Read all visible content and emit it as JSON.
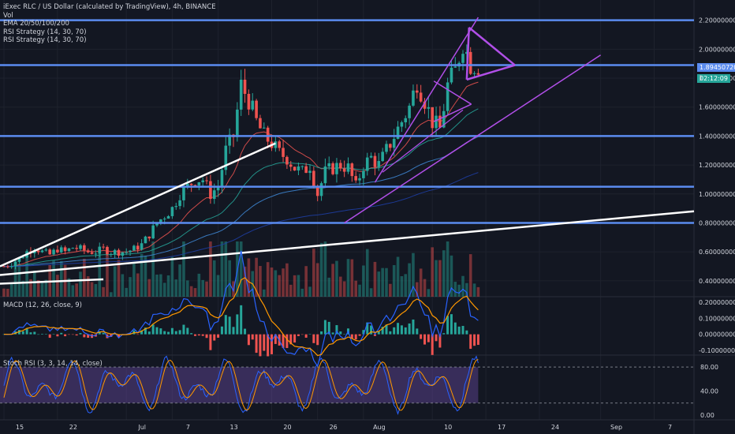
{
  "legend": {
    "title": "iExec RLC / US Dollar (calculated by TradingView), 4h, BINANCE",
    "vol": "Vol",
    "ema": "EMA 20/50/100/200",
    "rsi1": "RSI Strategy (14, 30, 70)",
    "rsi2": "RSI Strategy (14, 30, 70)"
  },
  "price_badge": {
    "price": "1.89450720",
    "countdown": "02:12:09",
    "cut_label": "1"
  },
  "macd_title": "MACD (12, 26, close, 9)",
  "stoch_title": "Stoch RSI (3, 3, 14, 14, close)",
  "colors": {
    "background": "#131722",
    "hline": "#5b8cf0",
    "trend_white": "#ffffff",
    "pattern": "#b14fe8",
    "up": "#26a69a",
    "down": "#ef5350",
    "stoch_band": "#7e57c2"
  },
  "chart_data": [
    {
      "type": "candlestick",
      "title": "iExec RLC / US Dollar (calculated by TradingView), 4h, BINANCE",
      "y_ticks": [
        "2.20000000",
        "2.00000000",
        "1.80000000",
        "1.60000000",
        "1.40000000",
        "1.20000000",
        "1.00000000",
        "0.80000000",
        "0.60000000",
        "0.40000000"
      ],
      "y_tick_values": [
        2.2,
        2.0,
        1.8,
        1.6,
        1.4,
        1.2,
        1.0,
        0.8,
        0.6,
        0.4
      ],
      "ylim": [
        0.29,
        2.34
      ],
      "x_ticks": [
        "15",
        "22",
        "Jul",
        "7",
        "13",
        "20",
        "26",
        "Aug",
        "10",
        "17",
        "24",
        "Sep",
        "7"
      ],
      "x_tick_days": [
        0,
        7,
        16,
        22,
        28,
        35,
        41,
        47,
        56,
        63,
        70,
        78,
        85
      ],
      "horizontal_levels": [
        2.2,
        1.89,
        1.4,
        1.05,
        0.8
      ],
      "series_day": [
        0,
        1,
        2,
        3,
        4,
        5,
        6,
        7,
        8,
        9,
        10,
        11,
        12,
        13,
        14,
        15,
        16,
        17,
        18,
        19,
        20,
        21,
        22,
        23,
        24,
        25,
        26,
        27,
        28,
        29,
        30,
        31,
        32,
        33,
        34,
        35,
        36,
        37,
        38,
        39,
        40,
        41,
        42,
        43,
        44,
        45,
        46,
        47,
        48,
        49,
        50,
        51,
        52,
        53,
        54,
        55,
        56,
        57,
        58,
        59,
        60,
        61,
        62
      ],
      "series_close": [
        0.5,
        0.52,
        0.55,
        0.6,
        0.63,
        0.6,
        0.58,
        0.62,
        0.6,
        0.63,
        0.62,
        0.6,
        0.6,
        0.62,
        0.6,
        0.6,
        0.6,
        0.62,
        0.65,
        0.72,
        0.8,
        0.85,
        0.9,
        1.0,
        1.05,
        1.1,
        1.1,
        1.0,
        1.05,
        1.3,
        1.4,
        1.75,
        1.65,
        1.5,
        1.4,
        1.35,
        1.28,
        1.25,
        1.18,
        1.15,
        1.2,
        1.0,
        1.15,
        1.18,
        1.2,
        1.18,
        1.05,
        1.2,
        1.25,
        1.2,
        1.3,
        1.4,
        1.5,
        1.6,
        1.78,
        1.65,
        1.5,
        1.45,
        1.75,
        1.85,
        2.05,
        1.9,
        1.89
      ],
      "ema_periods": [
        20,
        50,
        100,
        200
      ]
    },
    {
      "type": "line",
      "title": "MACD (12, 26, close, 9)",
      "y_ticks": [
        "0.20000000",
        "0.10000000",
        "0.00000000",
        "-0.10000000"
      ],
      "y_tick_values": [
        0.2,
        0.1,
        0.0,
        -0.1
      ],
      "ylim": [
        -0.13,
        0.235
      ]
    },
    {
      "type": "line",
      "title": "Stoch RSI (3, 3, 14, 14, close)",
      "y_ticks": [
        "80.00",
        "40.00",
        "0.00"
      ],
      "y_tick_values": [
        80,
        40,
        0
      ],
      "ylim": [
        -8,
        100
      ],
      "band": [
        20,
        80
      ]
    }
  ]
}
